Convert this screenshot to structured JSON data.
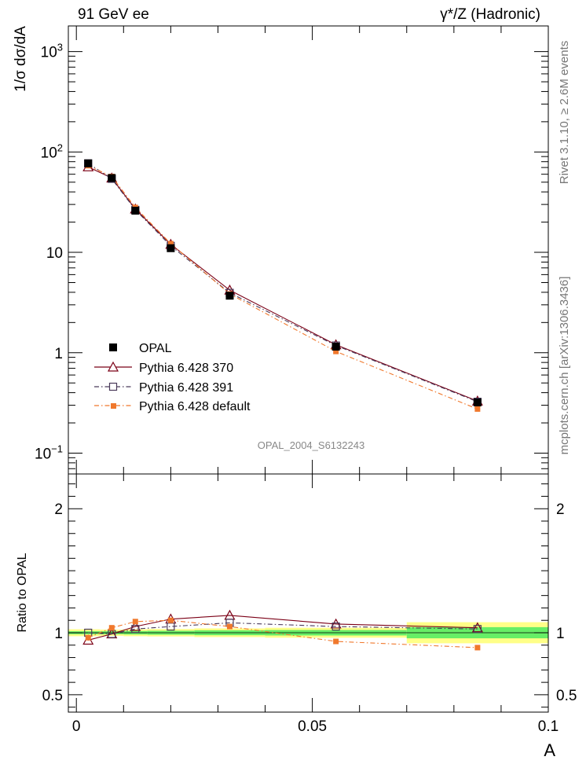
{
  "header": {
    "left_title": "91 GeV ee",
    "right_title": "γ*/Z (Hadronic)",
    "side_label_top": "Rivet 3.1.10, ≥ 2.6M events",
    "side_label_bottom": "mcplots.cern.ch [arXiv:1306.3436]",
    "analysis_id": "OPAL_2004_S6132243"
  },
  "chart_data": [
    {
      "type": "line",
      "panel": "main",
      "yscale": "log",
      "ylabel": "1/σ dσ/dA",
      "xlabel": "",
      "xlim": [
        -0.0017,
        0.1
      ],
      "ylim": [
        0.062,
        1800
      ],
      "y_tick_labels": [
        {
          "value": 0.1,
          "label": "10",
          "sup": "−1"
        },
        {
          "value": 1,
          "label": "1",
          "sup": ""
        },
        {
          "value": 10,
          "label": "10",
          "sup": ""
        },
        {
          "value": 100,
          "label": "10",
          "sup": "2"
        },
        {
          "value": 1000,
          "label": "10",
          "sup": "3"
        }
      ],
      "x": [
        0.0025,
        0.0075,
        0.0125,
        0.02,
        0.0325,
        0.055,
        0.085
      ],
      "series": [
        {
          "name": "OPAL",
          "marker": "filled-square",
          "color": "#000000",
          "line": "none",
          "values": [
            77,
            55,
            26,
            11,
            3.7,
            1.15,
            0.32
          ]
        },
        {
          "name": "Pythia 6.428 370",
          "marker": "open-triangle",
          "color": "#7b0016",
          "line": "solid",
          "values": [
            71,
            55,
            27,
            12,
            4.2,
            1.2,
            0.33
          ]
        },
        {
          "name": "Pythia 6.428 391",
          "marker": "open-square",
          "color": "#4a3a5a",
          "line": "dashdot",
          "values": [
            77,
            54,
            26.5,
            11.6,
            3.95,
            1.18,
            0.325
          ]
        },
        {
          "name": "Pythia 6.428 default",
          "marker": "filled-square-small",
          "color": "#f0782c",
          "line": "dashdot",
          "values": [
            73,
            57,
            28,
            12.2,
            3.85,
            1.03,
            0.275
          ]
        }
      ]
    },
    {
      "type": "line",
      "panel": "ratio",
      "ylabel": "Ratio to OPAL",
      "xlabel": "A",
      "xlim": [
        -0.0017,
        0.1
      ],
      "ylim": [
        0.36,
        2.28
      ],
      "x_ticks": [
        0,
        0.05,
        0.1
      ],
      "x_tick_labels": [
        "0",
        "0.05",
        "0.1"
      ],
      "y_ticks": [
        0.5,
        1,
        2
      ],
      "y_tick_labels": [
        "0.5",
        "1",
        "2"
      ],
      "x": [
        0.0025,
        0.0075,
        0.0125,
        0.02,
        0.0325,
        0.055,
        0.085
      ],
      "uncertainty_bands": {
        "bin_edges": [
          -0.0017,
          0.005,
          0.01,
          0.015,
          0.025,
          0.04,
          0.07,
          0.1
        ],
        "stat": [
          0.012,
          0.012,
          0.014,
          0.016,
          0.02,
          0.022,
          0.045
        ],
        "total": [
          0.028,
          0.025,
          0.028,
          0.03,
          0.035,
          0.04,
          0.085
        ]
      },
      "series": [
        {
          "name": "Pythia 6.428 370",
          "values": [
            0.94,
            0.99,
            1.05,
            1.11,
            1.14,
            1.07,
            1.04
          ]
        },
        {
          "name": "Pythia 6.428 391",
          "values": [
            1.0,
            0.99,
            1.03,
            1.05,
            1.08,
            1.05,
            1.03
          ]
        },
        {
          "name": "Pythia 6.428 default",
          "values": [
            0.96,
            1.04,
            1.09,
            1.1,
            1.05,
            0.93,
            0.88
          ]
        }
      ]
    }
  ],
  "colors": {
    "band_stat": "#66ee66",
    "band_total": "#ffff88"
  }
}
